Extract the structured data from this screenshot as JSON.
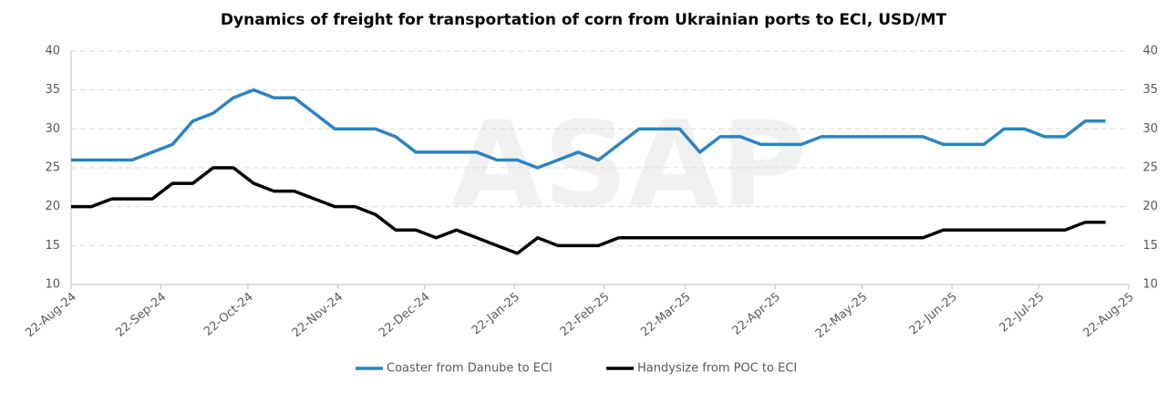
{
  "chart_data": {
    "type": "line",
    "title": "Dynamics of freight for transportation of corn from Ukrainian ports to ECI, USD/MT",
    "watermark": "ASAP",
    "x": [
      "2024-08-22",
      "2024-08-29",
      "2024-09-05",
      "2024-09-12",
      "2024-09-19",
      "2024-09-26",
      "2024-10-03",
      "2024-10-10",
      "2024-10-17",
      "2024-10-24",
      "2024-10-31",
      "2024-11-07",
      "2024-11-14",
      "2024-11-21",
      "2024-11-28",
      "2024-12-05",
      "2024-12-12",
      "2024-12-19",
      "2024-12-26",
      "2025-01-02",
      "2025-01-09",
      "2025-01-16",
      "2025-01-23",
      "2025-01-30",
      "2025-02-06",
      "2025-02-13",
      "2025-02-20",
      "2025-02-27",
      "2025-03-06",
      "2025-03-13",
      "2025-03-20",
      "2025-03-27",
      "2025-04-03",
      "2025-04-10",
      "2025-04-17",
      "2025-04-24",
      "2025-05-01",
      "2025-05-08",
      "2025-05-15",
      "2025-05-22",
      "2025-05-29",
      "2025-06-05",
      "2025-06-12",
      "2025-06-19",
      "2025-06-26",
      "2025-07-03",
      "2025-07-10",
      "2025-07-17",
      "2025-07-24",
      "2025-07-31",
      "2025-08-07",
      "2025-08-14"
    ],
    "series": [
      {
        "name": "Coaster from Danube to ECI",
        "color": "#2e83c0",
        "values": [
          26,
          26,
          26,
          26,
          27,
          28,
          31,
          32,
          34,
          35,
          34,
          34,
          32,
          30,
          30,
          30,
          29,
          27,
          27,
          27,
          27,
          26,
          26,
          25,
          26,
          27,
          26,
          28,
          30,
          30,
          30,
          27,
          29,
          29,
          28,
          28,
          28,
          29,
          29,
          29,
          29,
          29,
          29,
          28,
          28,
          28,
          30,
          30,
          29,
          29,
          31,
          31
        ]
      },
      {
        "name": "Handysize from POC to ECI",
        "color": "#000000",
        "values": [
          20,
          20,
          21,
          21,
          21,
          23,
          23,
          25,
          25,
          23,
          22,
          22,
          21,
          20,
          20,
          19,
          17,
          17,
          16,
          17,
          16,
          15,
          14,
          16,
          15,
          15,
          15,
          16,
          16,
          16,
          16,
          16,
          16,
          16,
          16,
          16,
          16,
          16,
          16,
          16,
          16,
          16,
          16,
          17,
          17,
          17,
          17,
          17,
          17,
          17,
          18,
          18
        ]
      }
    ],
    "xlim": [
      "2024-08-22",
      "2025-08-22"
    ],
    "xticks": [
      {
        "value": "2024-08-22",
        "label": "22-Aug-24"
      },
      {
        "value": "2024-09-22",
        "label": "22-Sep-24"
      },
      {
        "value": "2024-10-22",
        "label": "22-Oct-24"
      },
      {
        "value": "2024-11-22",
        "label": "22-Nov-24"
      },
      {
        "value": "2024-12-22",
        "label": "22-Dec-24"
      },
      {
        "value": "2025-01-22",
        "label": "22-Jan-25"
      },
      {
        "value": "2025-02-22",
        "label": "22-Feb-25"
      },
      {
        "value": "2025-03-22",
        "label": "22-Mar-25"
      },
      {
        "value": "2025-04-22",
        "label": "22-Apr-25"
      },
      {
        "value": "2025-05-22",
        "label": "22-May-25"
      },
      {
        "value": "2025-06-22",
        "label": "22-Jun-25"
      },
      {
        "value": "2025-07-22",
        "label": "22-Jul-25"
      },
      {
        "value": "2025-08-22",
        "label": "22-Aug-25"
      }
    ],
    "ylim": [
      10,
      40
    ],
    "yticks": [
      10,
      15,
      20,
      25,
      30,
      35,
      40
    ],
    "y2lim": [
      10,
      40
    ],
    "y2ticks": [
      10,
      15,
      20,
      25,
      30,
      35,
      40
    ],
    "grid": true,
    "legend": "bottom"
  }
}
